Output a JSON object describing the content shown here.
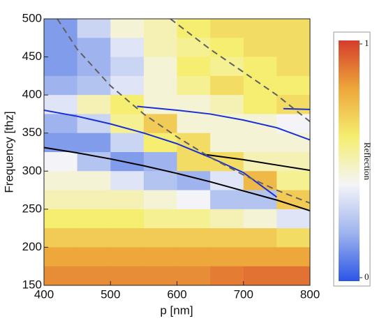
{
  "chart_data": {
    "type": "heatmap",
    "x_label": "p [nm]",
    "y_label": "Frequency [thz]",
    "colorbar_label": "Reflection",
    "xlim": [
      400,
      800
    ],
    "ylim": [
      150,
      500
    ],
    "xticks": [
      400,
      500,
      600,
      700,
      800
    ],
    "yticks": [
      150,
      200,
      250,
      300,
      350,
      400,
      450,
      500
    ],
    "clim": [
      0,
      1
    ],
    "cticks": [
      0,
      1
    ],
    "colorscale": [
      "#2a55e6",
      "#9fb4ee",
      "#f4f4f8",
      "#f5ee70",
      "#eda73a",
      "#d63c2c"
    ],
    "x": [
      425,
      475,
      525,
      575,
      625,
      675,
      725,
      775
    ],
    "y": [
      487.5,
      462.5,
      437.5,
      412.5,
      387.5,
      362.5,
      337.5,
      312.5,
      287.5,
      262.5,
      237.5,
      212.5,
      187.5,
      162.5
    ],
    "values": [
      [
        0.15,
        0.3,
        0.45,
        0.5,
        0.6,
        0.65,
        0.65,
        0.65
      ],
      [
        0.15,
        0.2,
        0.35,
        0.5,
        0.55,
        0.6,
        0.65,
        0.65
      ],
      [
        0.15,
        0.2,
        0.3,
        0.45,
        0.6,
        0.55,
        0.6,
        0.65
      ],
      [
        0.2,
        0.25,
        0.35,
        0.45,
        0.55,
        0.65,
        0.6,
        0.6
      ],
      [
        0.35,
        0.5,
        0.6,
        0.45,
        0.45,
        0.5,
        0.6,
        0.65
      ],
      [
        0.2,
        0.3,
        0.55,
        0.7,
        0.45,
        0.45,
        0.45,
        0.4
      ],
      [
        0.15,
        0.15,
        0.3,
        0.6,
        0.65,
        0.45,
        0.45,
        0.45
      ],
      [
        0.4,
        0.25,
        0.15,
        0.2,
        0.65,
        0.65,
        0.5,
        0.5
      ],
      [
        0.45,
        0.45,
        0.35,
        0.25,
        0.2,
        0.35,
        0.75,
        0.55
      ],
      [
        0.5,
        0.5,
        0.5,
        0.45,
        0.4,
        0.25,
        0.25,
        0.7
      ],
      [
        0.6,
        0.6,
        0.6,
        0.55,
        0.55,
        0.5,
        0.45,
        0.35
      ],
      [
        0.7,
        0.7,
        0.7,
        0.7,
        0.7,
        0.7,
        0.7,
        0.65
      ],
      [
        0.8,
        0.8,
        0.8,
        0.8,
        0.8,
        0.8,
        0.8,
        0.8
      ],
      [
        0.85,
        0.85,
        0.85,
        0.85,
        0.85,
        0.88,
        0.9,
        0.9
      ]
    ],
    "lines": [
      {
        "color": "#1a2fd6",
        "x": [
          540,
          600,
          650,
          700,
          750,
          800
        ],
        "values": [
          385,
          380,
          375,
          367,
          357,
          341
        ]
      },
      {
        "color": "#1a2fd6",
        "x": [
          760,
          800
        ],
        "values": [
          382,
          381
        ]
      },
      {
        "color": "#1a2fd6",
        "x": [
          400,
          450,
          500,
          550,
          600,
          650,
          700,
          750
        ],
        "values": [
          380,
          372,
          362,
          350,
          336,
          318,
          298,
          266
        ]
      },
      {
        "color": "#000000",
        "x": [
          640,
          700,
          750,
          800
        ],
        "values": [
          322,
          315,
          308,
          301
        ]
      },
      {
        "color": "#000000",
        "x": [
          400,
          450,
          500,
          550,
          600,
          650,
          700,
          750,
          800
        ],
        "values": [
          331,
          324,
          316,
          307,
          297,
          286,
          274,
          262,
          248
        ]
      },
      {
        "color": "#606060",
        "dash": true,
        "x": [
          420,
          450,
          500,
          550,
          600,
          650,
          700,
          750,
          800
        ],
        "values": [
          500,
          460,
          412,
          375,
          345,
          318,
          295,
          275,
          258
        ]
      },
      {
        "color": "#606060",
        "dash": true,
        "x": [
          590,
          620,
          650,
          700,
          750,
          800
        ],
        "values": [
          500,
          480,
          460,
          430,
          400,
          365
        ]
      }
    ]
  }
}
